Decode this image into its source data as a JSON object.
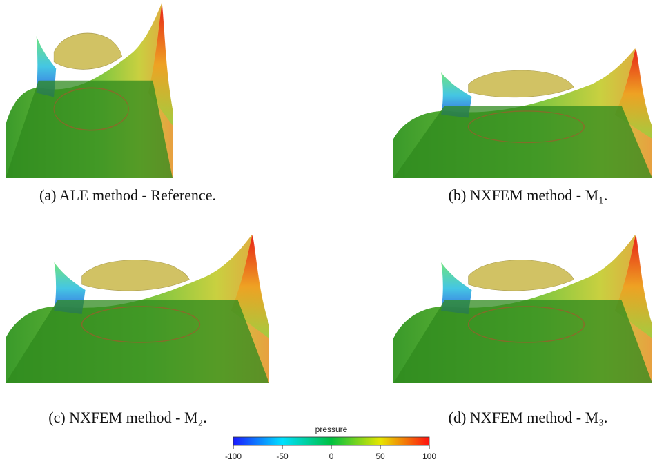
{
  "figure": {
    "panels": [
      {
        "caption": "(a) ALE method - Reference."
      },
      {
        "caption": "(b) NXFEM method - M₁."
      },
      {
        "caption": "(c) NXFEM method - M₂."
      },
      {
        "caption": "(d) NXFEM method - M₃."
      }
    ],
    "colorbar": {
      "label": "pressure",
      "lim": [
        -100,
        100
      ],
      "ticks": [
        -100,
        -50,
        0,
        50,
        100
      ],
      "colors": [
        "#1a1aff",
        "#00e0ff",
        "#00c040",
        "#e6e600",
        "#ff1010"
      ]
    }
  }
}
